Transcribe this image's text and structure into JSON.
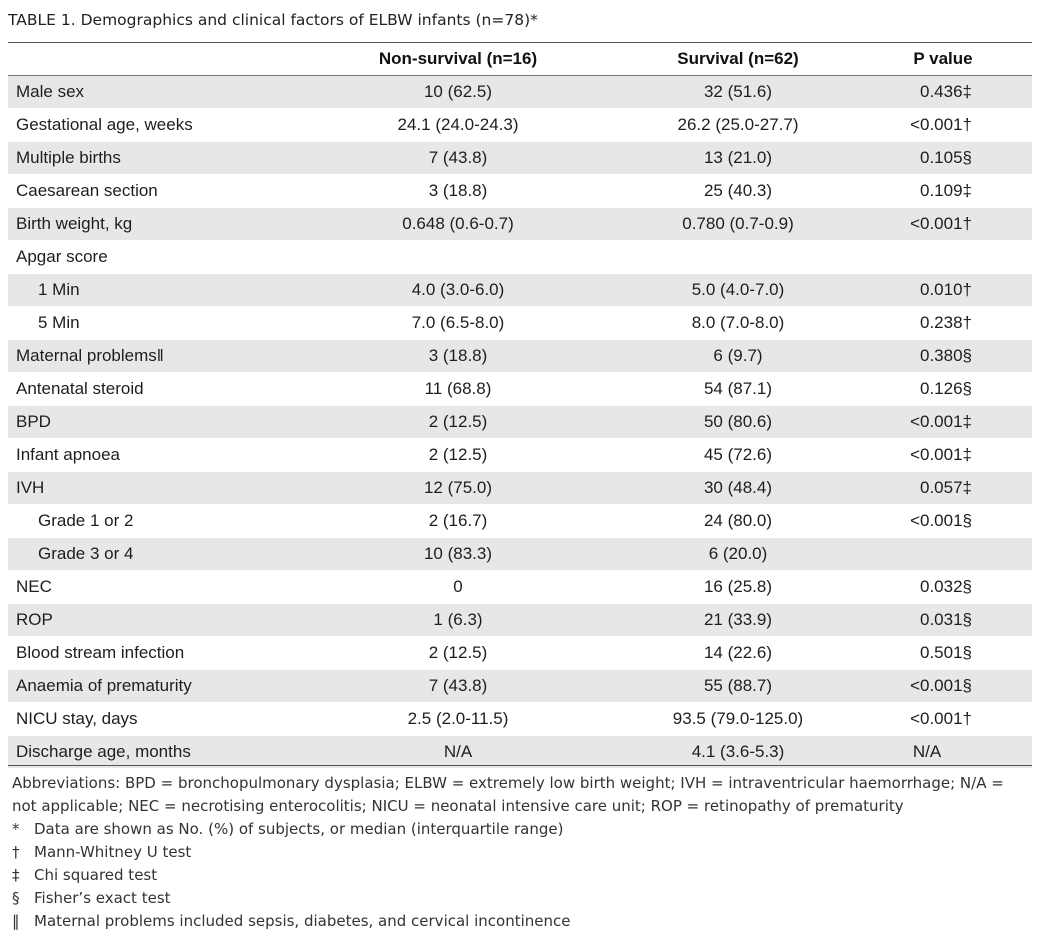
{
  "caption": {
    "label": "TABLE 1.",
    "text": "Demographics and clinical factors of ELBW infants (n=78)*"
  },
  "header": {
    "col_label": "",
    "col_nonsurvival": "Non-survival (n=16)",
    "col_survival": "Survival (n=62)",
    "col_pvalue": "P value"
  },
  "rows": [
    {
      "label": "Male sex",
      "nonsurvival": "10 (62.5)",
      "survival": "32 (51.6)",
      "p": "0.436‡",
      "indent": false,
      "shaded": true
    },
    {
      "label": "Gestational age, weeks",
      "nonsurvival": "24.1 (24.0-24.3)",
      "survival": "26.2 (25.0-27.7)",
      "p": "<0.001†",
      "indent": false,
      "shaded": false
    },
    {
      "label": "Multiple births",
      "nonsurvival": "7 (43.8)",
      "survival": "13 (21.0)",
      "p": "0.105§",
      "indent": false,
      "shaded": true
    },
    {
      "label": "Caesarean section",
      "nonsurvival": "3 (18.8)",
      "survival": "25 (40.3)",
      "p": "0.109‡",
      "indent": false,
      "shaded": false
    },
    {
      "label": "Birth weight, kg",
      "nonsurvival": "0.648 (0.6-0.7)",
      "survival": "0.780 (0.7-0.9)",
      "p": "<0.001†",
      "indent": false,
      "shaded": true
    },
    {
      "label": "Apgar score",
      "nonsurvival": "",
      "survival": "",
      "p": "",
      "indent": false,
      "shaded": false
    },
    {
      "label": "1 Min",
      "nonsurvival": "4.0 (3.0-6.0)",
      "survival": "5.0 (4.0-7.0)",
      "p": "0.010†",
      "indent": true,
      "shaded": true
    },
    {
      "label": "5 Min",
      "nonsurvival": "7.0 (6.5-8.0)",
      "survival": "8.0 (7.0-8.0)",
      "p": "0.238†",
      "indent": true,
      "shaded": false
    },
    {
      "label": "Maternal problems‖",
      "nonsurvival": "3 (18.8)",
      "survival": "6 (9.7)",
      "p": "0.380§",
      "indent": false,
      "shaded": true
    },
    {
      "label": "Antenatal steroid",
      "nonsurvival": "11 (68.8)",
      "survival": "54 (87.1)",
      "p": "0.126§",
      "indent": false,
      "shaded": false
    },
    {
      "label": "BPD",
      "nonsurvival": "2 (12.5)",
      "survival": "50 (80.6)",
      "p": "<0.001‡",
      "indent": false,
      "shaded": true
    },
    {
      "label": "Infant apnoea",
      "nonsurvival": "2 (12.5)",
      "survival": "45 (72.6)",
      "p": "<0.001‡",
      "indent": false,
      "shaded": false
    },
    {
      "label": "IVH",
      "nonsurvival": "12 (75.0)",
      "survival": "30 (48.4)",
      "p": "0.057‡",
      "indent": false,
      "shaded": true
    },
    {
      "label": "Grade 1 or 2",
      "nonsurvival": "2 (16.7)",
      "survival": "24 (80.0)",
      "p": "<0.001§",
      "indent": true,
      "shaded": false
    },
    {
      "label": "Grade 3 or 4",
      "nonsurvival": "10 (83.3)",
      "survival": "6 (20.0)",
      "p": "",
      "indent": true,
      "shaded": true
    },
    {
      "label": "NEC",
      "nonsurvival": "0",
      "survival": "16 (25.8)",
      "p": "0.032§",
      "indent": false,
      "shaded": false
    },
    {
      "label": "ROP",
      "nonsurvival": "1 (6.3)",
      "survival": "21 (33.9)",
      "p": "0.031§",
      "indent": false,
      "shaded": true
    },
    {
      "label": "Blood stream infection",
      "nonsurvival": "2 (12.5)",
      "survival": "14 (22.6)",
      "p": "0.501§",
      "indent": false,
      "shaded": false
    },
    {
      "label": "Anaemia of prematurity",
      "nonsurvival": "7 (43.8)",
      "survival": "55 (88.7)",
      "p": "<0.001§",
      "indent": false,
      "shaded": true
    },
    {
      "label": "NICU stay, days",
      "nonsurvival": "2.5 (2.0-11.5)",
      "survival": "93.5 (79.0-125.0)",
      "p": "<0.001†",
      "indent": false,
      "shaded": false
    },
    {
      "label": "Discharge age, months",
      "nonsurvival": "N/A",
      "survival": "4.1 (3.6-5.3)",
      "p": "N/A",
      "indent": false,
      "shaded": true
    }
  ],
  "notes": {
    "abbreviations": "Abbreviations: BPD = bronchopulmonary dysplasia; ELBW = extremely low birth weight; IVH = intraventricular haemorrhage; N/A = not applicable; NEC = necrotising enterocolitis; NICU = neonatal intensive care unit; ROP = retinopathy of prematurity",
    "footnotes": [
      {
        "symbol": "*",
        "text": "Data are shown as No. (%) of subjects, or median (interquartile range)"
      },
      {
        "symbol": "†",
        "text": "Mann-Whitney U test"
      },
      {
        "symbol": "‡",
        "text": "Chi squared test"
      },
      {
        "symbol": "§",
        "text": "Fisher’s exact test"
      },
      {
        "symbol": "‖",
        "text": "Maternal problems included sepsis, diabetes, and cervical incontinence"
      }
    ]
  }
}
